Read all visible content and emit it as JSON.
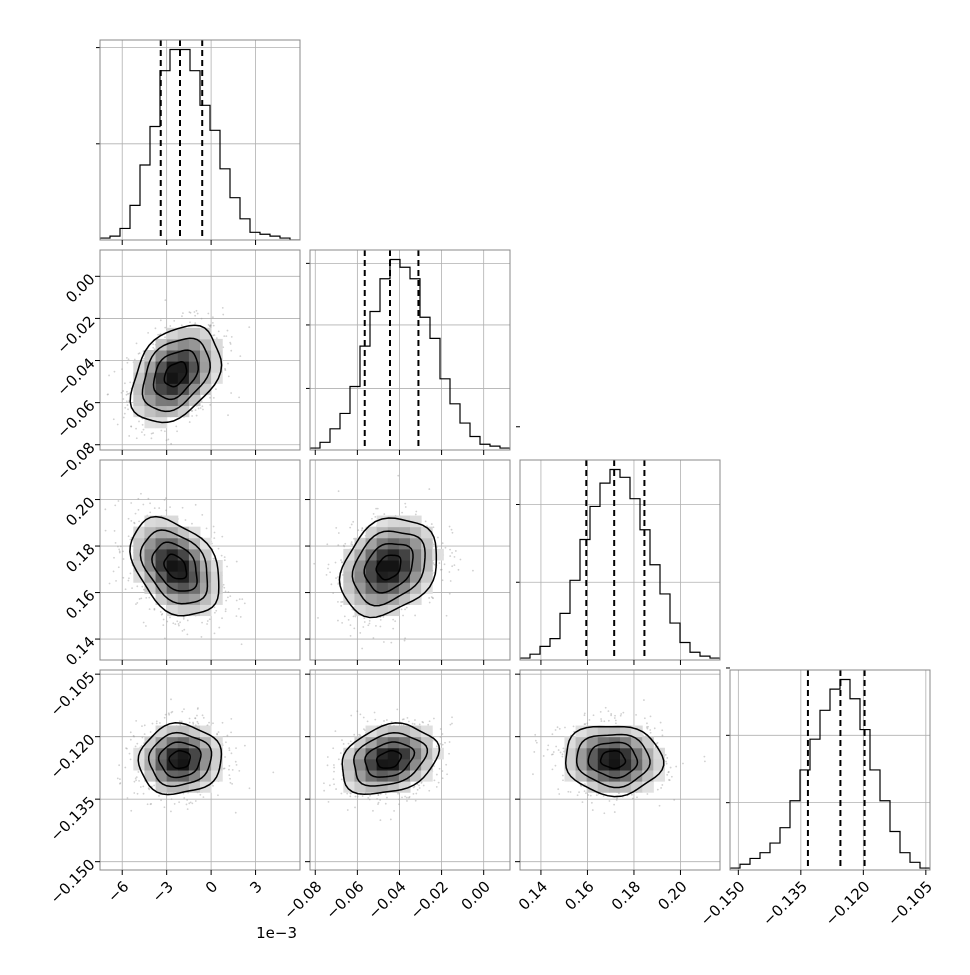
{
  "chart_data": {
    "type": "corner",
    "parameters": [
      {
        "id": "p1",
        "range": [
          -7.5,
          6.0
        ],
        "ticks": [
          -6,
          -3,
          0,
          3
        ],
        "tick_labels": [
          "−6",
          "−3",
          "0",
          "3"
        ],
        "offset_text": "1e−3",
        "quantiles": [
          -3.4,
          -2.1,
          -0.6
        ],
        "hist": {
          "counts": [
            1,
            2,
            6,
            18,
            39,
            59,
            88,
            99,
            99,
            88,
            70,
            57,
            37,
            22,
            11,
            4,
            3,
            2,
            1,
            0
          ],
          "hist_ticks": [
            50,
            100,
            150
          ]
        }
      },
      {
        "id": "p2",
        "range": [
          -0.0825,
          0.0125
        ],
        "ticks": [
          -0.08,
          -0.06,
          -0.04,
          -0.02,
          0.0
        ],
        "tick_labels": [
          "−0.08",
          "−0.06",
          "−0.04",
          "−0.02",
          "0.00"
        ],
        "quantiles": [
          -0.0565,
          -0.0445,
          -0.031
        ],
        "hist": {
          "counts": [
            1,
            4,
            11,
            19,
            33,
            54,
            72,
            89,
            99,
            95,
            89,
            69,
            58,
            37,
            24,
            14,
            7,
            3,
            2,
            1
          ],
          "hist_ticks": [
            32,
            65,
            97
          ]
        }
      },
      {
        "id": "p3",
        "range": [
          0.131,
          0.217
        ],
        "ticks": [
          0.14,
          0.16,
          0.18,
          0.2
        ],
        "tick_labels": [
          "0.14",
          "0.16",
          "0.18",
          "0.20"
        ],
        "quantiles": [
          0.1595,
          0.1715,
          0.1845
        ],
        "hist": {
          "counts": [
            1,
            3,
            7,
            11,
            24,
            41,
            62,
            79,
            91,
            98,
            94,
            83,
            67,
            49,
            34,
            19,
            9,
            4,
            2,
            1
          ],
          "hist_ticks": [
            40,
            80,
            120
          ]
        }
      },
      {
        "id": "p4",
        "range": [
          -0.152,
          -0.104
        ],
        "ticks": [
          -0.15,
          -0.135,
          -0.12,
          -0.105
        ],
        "tick_labels": [
          "−0.150",
          "−0.135",
          "−0.120",
          "−0.105"
        ],
        "quantiles": [
          -0.1333,
          -0.1255,
          -0.1197
        ],
        "hist": {
          "counts": [
            1,
            3,
            6,
            9,
            14,
            22,
            36,
            52,
            68,
            83,
            94,
            99,
            89,
            73,
            52,
            36,
            20,
            9,
            4,
            1
          ],
          "hist_ticks": [
            35,
            70,
            105
          ]
        }
      }
    ],
    "pairs": [
      {
        "x": 0,
        "y": 1,
        "center": [
          -2.4,
          -0.0465
        ],
        "sd": [
          1.5,
          0.0115
        ],
        "rho": 0.35
      },
      {
        "x": 0,
        "y": 2,
        "center": [
          -2.4,
          0.171
        ],
        "sd": [
          1.5,
          0.0105
        ],
        "rho": -0.35
      },
      {
        "x": 1,
        "y": 2,
        "center": [
          -0.045,
          0.171
        ],
        "sd": [
          0.0115,
          0.0105
        ],
        "rho": 0.25
      },
      {
        "x": 0,
        "y": 3,
        "center": [
          -2.1,
          -0.1255
        ],
        "sd": [
          1.4,
          0.0042
        ],
        "rho": 0.05
      },
      {
        "x": 1,
        "y": 3,
        "center": [
          -0.045,
          -0.1255
        ],
        "sd": [
          0.0115,
          0.0042
        ],
        "rho": 0.25
      },
      {
        "x": 2,
        "y": 3,
        "center": [
          0.171,
          -0.1255
        ],
        "sd": [
          0.0105,
          0.0042
        ],
        "rho": -0.05
      }
    ],
    "grid": true,
    "contour_levels_sigma": [
      0.5,
      1.0,
      1.5,
      2.0
    ],
    "colors": {
      "hist_line": "#000000",
      "contour": "#000000",
      "scatter": "#9a9a9a",
      "grid": "#b0b0b0",
      "frame": "#888888"
    }
  }
}
